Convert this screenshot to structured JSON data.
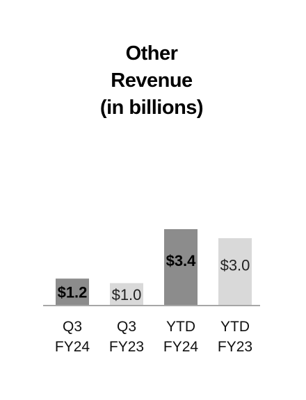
{
  "chart_data": {
    "type": "bar",
    "title_lines": [
      "Other",
      "Revenue",
      "(in billions)"
    ],
    "categories": [
      [
        "Q3",
        "FY24"
      ],
      [
        "Q3",
        "FY23"
      ],
      [
        "YTD",
        "FY24"
      ],
      [
        "YTD",
        "FY23"
      ]
    ],
    "values": [
      1.2,
      1.0,
      3.4,
      3.0
    ],
    "value_labels": [
      "$1.2",
      "$1.0",
      "$3.4",
      "$3.0"
    ],
    "bar_colors": [
      "#8c8c8c",
      "#d9d9d9",
      "#8c8c8c",
      "#d9d9d9"
    ],
    "label_bold": [
      true,
      false,
      true,
      false
    ],
    "axis_color": "#a6a6a6",
    "ylim": [
      0,
      3.4
    ],
    "grid": false,
    "legend": "none"
  }
}
